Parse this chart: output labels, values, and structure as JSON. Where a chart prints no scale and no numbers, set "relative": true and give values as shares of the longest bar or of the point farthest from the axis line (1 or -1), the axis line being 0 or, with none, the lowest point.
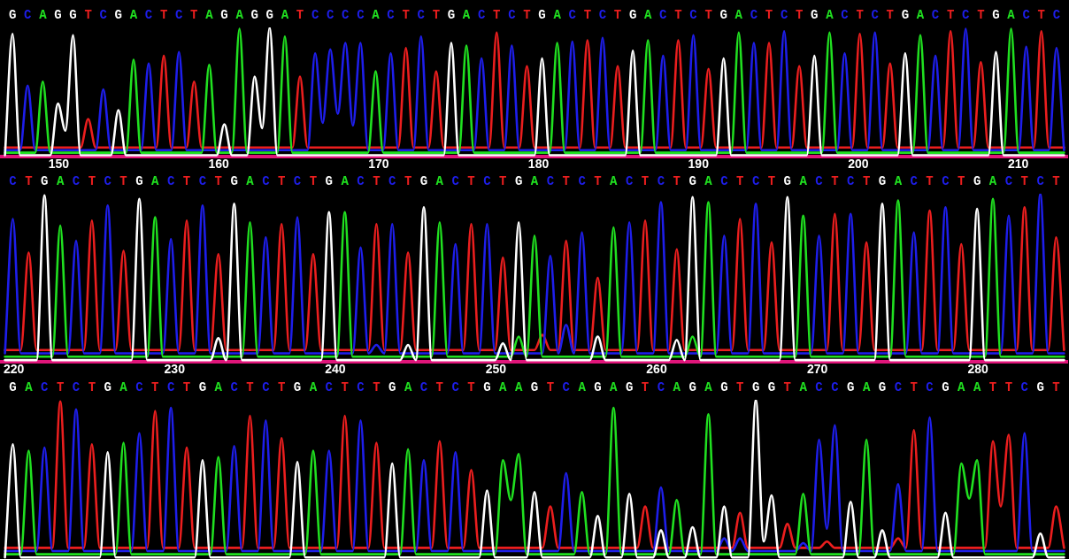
{
  "chart_data": [
    {
      "type": "line",
      "relative": true,
      "categories": [
        null,
        "G",
        null,
        "C",
        null,
        "A",
        null,
        "G",
        null,
        "G",
        null,
        "T",
        null,
        "C",
        null,
        "G",
        null,
        "A",
        null,
        "C",
        null,
        "T",
        null,
        "C",
        null,
        "T",
        null,
        "A",
        null,
        "G",
        null,
        "A",
        null,
        "G",
        null,
        "G",
        null,
        "A",
        null,
        "T",
        null,
        "C",
        null,
        "C",
        null,
        "C",
        null,
        "C",
        null,
        "A",
        null,
        "C",
        null,
        "T",
        null,
        "C",
        null,
        "T",
        null,
        "G",
        null,
        "A",
        null,
        "C",
        null,
        "T",
        null,
        "C",
        null,
        "T",
        null,
        "G",
        null,
        "A",
        null,
        "C",
        null,
        "T",
        null,
        "C",
        null,
        "T",
        null,
        "G",
        null,
        "A",
        null,
        "C",
        null,
        "T",
        null,
        "C",
        null,
        "T",
        null,
        "G",
        null,
        "A",
        null,
        "C",
        null,
        "T",
        null,
        "C",
        null,
        "T",
        null,
        "G",
        null,
        "A",
        null,
        "C",
        null,
        "T",
        null,
        "C",
        null,
        "T",
        null,
        "G",
        null,
        "A",
        null,
        "C",
        null,
        "T",
        null,
        "C",
        null,
        "T",
        null,
        "G",
        null,
        "A",
        null,
        "C",
        null,
        "T",
        null,
        "C",
        null
      ],
      "x2lim": [
        146.4,
        213.1
      ],
      "x2ticks": [
        150,
        160,
        170,
        180,
        190,
        200,
        210
      ],
      "series": [
        {
          "color": "#ffffff",
          "values": [
            0.01,
            0.95,
            0.01,
            0.01,
            0.01,
            0.01,
            0.01,
            0.41,
            0.2,
            0.94,
            0.01,
            0.01,
            0.01,
            0.01,
            0.01,
            0.36,
            0.01,
            0.01,
            0.01,
            0.01,
            0.01,
            0.01,
            0.01,
            0.01,
            0.01,
            0.01,
            0.01,
            0.01,
            0.01,
            0.25,
            0.01,
            0.01,
            0.01,
            0.62,
            0.22,
            1.0,
            0.01,
            0.01,
            0.01,
            0.01,
            0.01,
            0.01,
            0.01,
            0.01,
            0.01,
            0.01,
            0.01,
            0.01,
            0.01,
            0.01,
            0.01,
            0.01,
            0.01,
            0.01,
            0.01,
            0.01,
            0.01,
            0.01,
            0.01,
            0.88,
            0.01,
            0.01,
            0.01,
            0.01,
            0.01,
            0.01,
            0.01,
            0.01,
            0.01,
            0.01,
            0.01,
            0.76,
            0.01,
            0.01,
            0.01,
            0.01,
            0.01,
            0.01,
            0.01,
            0.01,
            0.01,
            0.01,
            0.01,
            0.82,
            0.01,
            0.01,
            0.01,
            0.01,
            0.01,
            0.01,
            0.01,
            0.01,
            0.01,
            0.01,
            0.01,
            0.76,
            0.01,
            0.01,
            0.01,
            0.01,
            0.01,
            0.01,
            0.01,
            0.01,
            0.01,
            0.01,
            0.01,
            0.78,
            0.01,
            0.01,
            0.01,
            0.01,
            0.01,
            0.01,
            0.01,
            0.01,
            0.01,
            0.01,
            0.01,
            0.8,
            0.01,
            0.01,
            0.01,
            0.01,
            0.01,
            0.01,
            0.01,
            0.01,
            0.01,
            0.01,
            0.01,
            0.81,
            0.01,
            0.01,
            0.01,
            0.01,
            0.01,
            0.01,
            0.01,
            0.01,
            0.01
          ]
        },
        {
          "color": "#20e020",
          "values": [
            0.03,
            0.03,
            0.03,
            0.03,
            0.03,
            0.58,
            0.03,
            0.03,
            0.03,
            0.03,
            0.03,
            0.03,
            0.03,
            0.03,
            0.03,
            0.03,
            0.03,
            0.75,
            0.03,
            0.03,
            0.03,
            0.03,
            0.03,
            0.03,
            0.03,
            0.03,
            0.03,
            0.71,
            0.03,
            0.03,
            0.03,
            0.99,
            0.03,
            0.03,
            0.03,
            0.03,
            0.03,
            0.93,
            0.03,
            0.03,
            0.03,
            0.03,
            0.03,
            0.03,
            0.03,
            0.03,
            0.03,
            0.03,
            0.03,
            0.66,
            0.03,
            0.03,
            0.03,
            0.03,
            0.03,
            0.03,
            0.03,
            0.03,
            0.03,
            0.03,
            0.03,
            0.86,
            0.03,
            0.03,
            0.03,
            0.03,
            0.03,
            0.03,
            0.03,
            0.03,
            0.03,
            0.03,
            0.03,
            0.88,
            0.03,
            0.03,
            0.03,
            0.03,
            0.03,
            0.03,
            0.03,
            0.03,
            0.03,
            0.03,
            0.03,
            0.9,
            0.03,
            0.03,
            0.03,
            0.03,
            0.03,
            0.03,
            0.03,
            0.03,
            0.03,
            0.03,
            0.03,
            0.96,
            0.03,
            0.03,
            0.03,
            0.03,
            0.03,
            0.03,
            0.03,
            0.03,
            0.03,
            0.03,
            0.03,
            0.96,
            0.03,
            0.03,
            0.03,
            0.03,
            0.03,
            0.03,
            0.03,
            0.03,
            0.03,
            0.03,
            0.03,
            0.94,
            0.03,
            0.03,
            0.03,
            0.03,
            0.03,
            0.03,
            0.03,
            0.03,
            0.03,
            0.03,
            0.03,
            0.99,
            0.03,
            0.03,
            0.03,
            0.03,
            0.03,
            0.03,
            0.03
          ]
        },
        {
          "color": "#1e1eeb",
          "values": [
            0.05,
            0.05,
            0.05,
            0.55,
            0.05,
            0.05,
            0.05,
            0.05,
            0.05,
            0.05,
            0.05,
            0.05,
            0.05,
            0.52,
            0.05,
            0.05,
            0.05,
            0.05,
            0.05,
            0.72,
            0.05,
            0.05,
            0.05,
            0.81,
            0.05,
            0.05,
            0.05,
            0.05,
            0.05,
            0.05,
            0.05,
            0.05,
            0.05,
            0.05,
            0.05,
            0.05,
            0.05,
            0.05,
            0.05,
            0.05,
            0.05,
            0.8,
            0.26,
            0.83,
            0.33,
            0.88,
            0.24,
            0.88,
            0.05,
            0.05,
            0.05,
            0.8,
            0.05,
            0.05,
            0.05,
            0.93,
            0.05,
            0.05,
            0.05,
            0.05,
            0.05,
            0.05,
            0.05,
            0.76,
            0.05,
            0.05,
            0.05,
            0.86,
            0.05,
            0.05,
            0.05,
            0.05,
            0.05,
            0.05,
            0.05,
            0.89,
            0.05,
            0.05,
            0.05,
            0.92,
            0.05,
            0.05,
            0.05,
            0.05,
            0.05,
            0.05,
            0.05,
            0.78,
            0.05,
            0.05,
            0.05,
            0.94,
            0.05,
            0.05,
            0.05,
            0.05,
            0.05,
            0.05,
            0.05,
            0.88,
            0.05,
            0.05,
            0.05,
            0.97,
            0.05,
            0.05,
            0.05,
            0.05,
            0.05,
            0.05,
            0.05,
            0.8,
            0.05,
            0.05,
            0.05,
            0.96,
            0.05,
            0.05,
            0.05,
            0.05,
            0.05,
            0.05,
            0.05,
            0.78,
            0.05,
            0.05,
            0.05,
            0.99,
            0.05,
            0.05,
            0.05,
            0.05,
            0.05,
            0.05,
            0.05,
            0.85,
            0.05,
            0.05,
            0.05,
            0.84,
            0.05
          ]
        },
        {
          "color": "#eb1e1e",
          "values": [
            0.07,
            0.07,
            0.07,
            0.07,
            0.07,
            0.07,
            0.07,
            0.07,
            0.07,
            0.07,
            0.07,
            0.29,
            0.07,
            0.07,
            0.07,
            0.07,
            0.07,
            0.07,
            0.07,
            0.07,
            0.07,
            0.78,
            0.07,
            0.07,
            0.07,
            0.58,
            0.07,
            0.07,
            0.07,
            0.07,
            0.07,
            0.07,
            0.07,
            0.07,
            0.07,
            0.07,
            0.07,
            0.07,
            0.07,
            0.62,
            0.07,
            0.07,
            0.07,
            0.07,
            0.07,
            0.07,
            0.07,
            0.07,
            0.07,
            0.07,
            0.07,
            0.07,
            0.07,
            0.84,
            0.07,
            0.07,
            0.07,
            0.66,
            0.07,
            0.07,
            0.07,
            0.07,
            0.07,
            0.07,
            0.07,
            0.96,
            0.07,
            0.07,
            0.07,
            0.7,
            0.07,
            0.07,
            0.07,
            0.07,
            0.07,
            0.07,
            0.07,
            0.9,
            0.07,
            0.07,
            0.07,
            0.7,
            0.07,
            0.07,
            0.07,
            0.07,
            0.07,
            0.07,
            0.07,
            0.9,
            0.07,
            0.07,
            0.07,
            0.68,
            0.07,
            0.07,
            0.07,
            0.07,
            0.07,
            0.07,
            0.07,
            0.88,
            0.07,
            0.07,
            0.07,
            0.7,
            0.07,
            0.07,
            0.07,
            0.07,
            0.07,
            0.07,
            0.07,
            0.95,
            0.07,
            0.07,
            0.07,
            0.72,
            0.07,
            0.07,
            0.07,
            0.07,
            0.07,
            0.07,
            0.07,
            0.97,
            0.07,
            0.07,
            0.07,
            0.73,
            0.07,
            0.07,
            0.07,
            0.07,
            0.07,
            0.07,
            0.07,
            0.97,
            0.07,
            0.07,
            0.07
          ]
        }
      ]
    },
    {
      "type": "line",
      "relative": true,
      "categories": [
        null,
        "C",
        null,
        "T",
        null,
        "G",
        null,
        "A",
        null,
        "C",
        null,
        "T",
        null,
        "C",
        null,
        "T",
        null,
        "G",
        null,
        "A",
        null,
        "C",
        null,
        "T",
        null,
        "C",
        null,
        "T",
        null,
        "G",
        null,
        "A",
        null,
        "C",
        null,
        "T",
        null,
        "C",
        null,
        "T",
        null,
        "G",
        null,
        "A",
        null,
        "C",
        null,
        "T",
        null,
        "C",
        null,
        "T",
        null,
        "G",
        null,
        "A",
        null,
        "C",
        null,
        "T",
        null,
        "C",
        null,
        "T",
        null,
        "G",
        null,
        "A",
        null,
        "C",
        null,
        "T",
        null,
        "C",
        null,
        "T",
        null,
        "A",
        null,
        "C",
        null,
        "T",
        null,
        "C",
        null,
        "T",
        null,
        "G",
        null,
        "A",
        null,
        "C",
        null,
        "T",
        null,
        "C",
        null,
        "T",
        null,
        "G",
        null,
        "A",
        null,
        "C",
        null,
        "T",
        null,
        "C",
        null,
        "T",
        null,
        "G",
        null,
        "A",
        null,
        "C",
        null,
        "T",
        null,
        "C",
        null,
        "T",
        null,
        "G",
        null,
        "A",
        null,
        "C",
        null,
        "T",
        null,
        "C",
        null,
        "T",
        null
      ],
      "x2lim": [
        219.2,
        285.6
      ],
      "x2ticks": [
        220,
        230,
        240,
        250,
        260,
        270,
        280
      ],
      "series": [
        {
          "color": "#ffffff",
          "values": [
            0.01,
            0.01,
            0.01,
            0.01,
            0.01,
            0.99,
            0.01,
            0.01,
            0.01,
            0.01,
            0.01,
            0.01,
            0.01,
            0.01,
            0.01,
            0.01,
            0.01,
            0.97,
            0.01,
            0.01,
            0.01,
            0.01,
            0.01,
            0.01,
            0.01,
            0.01,
            0.01,
            0.14,
            0.01,
            0.94,
            0.01,
            0.01,
            0.01,
            0.01,
            0.01,
            0.01,
            0.01,
            0.01,
            0.01,
            0.01,
            0.01,
            0.89,
            0.01,
            0.01,
            0.01,
            0.01,
            0.01,
            0.01,
            0.01,
            0.01,
            0.01,
            0.1,
            0.01,
            0.92,
            0.01,
            0.01,
            0.01,
            0.01,
            0.01,
            0.01,
            0.01,
            0.01,
            0.01,
            0.11,
            0.01,
            0.83,
            0.01,
            0.01,
            0.01,
            0.01,
            0.01,
            0.01,
            0.01,
            0.01,
            0.01,
            0.15,
            0.01,
            0.01,
            0.01,
            0.01,
            0.01,
            0.01,
            0.01,
            0.01,
            0.01,
            0.13,
            0.01,
            0.98,
            0.01,
            0.01,
            0.01,
            0.01,
            0.01,
            0.01,
            0.01,
            0.01,
            0.01,
            0.01,
            0.01,
            0.98,
            0.01,
            0.01,
            0.01,
            0.01,
            0.01,
            0.01,
            0.01,
            0.01,
            0.01,
            0.01,
            0.01,
            0.94,
            0.01,
            0.01,
            0.01,
            0.01,
            0.01,
            0.01,
            0.01,
            0.01,
            0.01,
            0.01,
            0.01,
            0.91,
            0.01,
            0.01,
            0.01,
            0.01,
            0.01,
            0.01,
            0.01,
            0.01,
            0.01,
            0.01,
            0.01
          ]
        },
        {
          "color": "#20e020",
          "values": [
            0.03,
            0.03,
            0.03,
            0.03,
            0.03,
            0.03,
            0.03,
            0.81,
            0.03,
            0.03,
            0.03,
            0.03,
            0.03,
            0.03,
            0.03,
            0.03,
            0.03,
            0.03,
            0.03,
            0.86,
            0.03,
            0.03,
            0.03,
            0.03,
            0.03,
            0.03,
            0.03,
            0.03,
            0.03,
            0.03,
            0.03,
            0.83,
            0.03,
            0.03,
            0.03,
            0.03,
            0.03,
            0.03,
            0.03,
            0.03,
            0.03,
            0.03,
            0.03,
            0.89,
            0.03,
            0.03,
            0.03,
            0.03,
            0.03,
            0.03,
            0.03,
            0.03,
            0.03,
            0.03,
            0.03,
            0.83,
            0.03,
            0.03,
            0.03,
            0.03,
            0.03,
            0.03,
            0.03,
            0.03,
            0.03,
            0.15,
            0.03,
            0.75,
            0.03,
            0.03,
            0.03,
            0.03,
            0.03,
            0.03,
            0.03,
            0.03,
            0.03,
            0.8,
            0.03,
            0.03,
            0.03,
            0.03,
            0.03,
            0.03,
            0.03,
            0.03,
            0.03,
            0.15,
            0.03,
            0.95,
            0.03,
            0.03,
            0.03,
            0.03,
            0.03,
            0.03,
            0.03,
            0.03,
            0.03,
            0.03,
            0.03,
            0.87,
            0.03,
            0.03,
            0.03,
            0.03,
            0.03,
            0.03,
            0.03,
            0.03,
            0.03,
            0.03,
            0.03,
            0.96,
            0.03,
            0.03,
            0.03,
            0.03,
            0.03,
            0.03,
            0.03,
            0.03,
            0.03,
            0.03,
            0.03,
            0.97,
            0.03,
            0.03,
            0.03,
            0.03,
            0.03,
            0.03,
            0.03,
            0.03,
            0.03
          ]
        },
        {
          "color": "#1e1eeb",
          "values": [
            0.05,
            0.85,
            0.05,
            0.05,
            0.05,
            0.05,
            0.05,
            0.05,
            0.05,
            0.72,
            0.05,
            0.05,
            0.05,
            0.93,
            0.05,
            0.05,
            0.05,
            0.05,
            0.05,
            0.05,
            0.05,
            0.73,
            0.05,
            0.05,
            0.05,
            0.93,
            0.05,
            0.05,
            0.05,
            0.05,
            0.05,
            0.05,
            0.05,
            0.74,
            0.05,
            0.05,
            0.05,
            0.86,
            0.05,
            0.05,
            0.05,
            0.05,
            0.05,
            0.05,
            0.05,
            0.68,
            0.05,
            0.1,
            0.05,
            0.82,
            0.05,
            0.05,
            0.05,
            0.05,
            0.05,
            0.05,
            0.05,
            0.7,
            0.05,
            0.05,
            0.05,
            0.82,
            0.05,
            0.05,
            0.05,
            0.05,
            0.05,
            0.05,
            0.05,
            0.63,
            0.05,
            0.22,
            0.05,
            0.77,
            0.05,
            0.05,
            0.05,
            0.05,
            0.05,
            0.83,
            0.05,
            0.05,
            0.05,
            0.95,
            0.05,
            0.05,
            0.05,
            0.05,
            0.05,
            0.05,
            0.05,
            0.75,
            0.05,
            0.05,
            0.05,
            0.94,
            0.05,
            0.05,
            0.05,
            0.05,
            0.05,
            0.05,
            0.05,
            0.75,
            0.05,
            0.05,
            0.05,
            0.88,
            0.05,
            0.05,
            0.05,
            0.05,
            0.05,
            0.05,
            0.05,
            0.77,
            0.05,
            0.05,
            0.05,
            0.92,
            0.05,
            0.05,
            0.05,
            0.05,
            0.05,
            0.05,
            0.05,
            0.87,
            0.05,
            0.05,
            0.05,
            1.0,
            0.05,
            0.05,
            0.05
          ]
        },
        {
          "color": "#eb1e1e",
          "values": [
            0.07,
            0.07,
            0.07,
            0.65,
            0.07,
            0.07,
            0.07,
            0.07,
            0.07,
            0.07,
            0.07,
            0.84,
            0.07,
            0.07,
            0.07,
            0.66,
            0.07,
            0.07,
            0.07,
            0.07,
            0.07,
            0.07,
            0.07,
            0.84,
            0.07,
            0.07,
            0.07,
            0.64,
            0.07,
            0.07,
            0.07,
            0.07,
            0.07,
            0.07,
            0.07,
            0.82,
            0.07,
            0.07,
            0.07,
            0.64,
            0.07,
            0.07,
            0.07,
            0.07,
            0.07,
            0.07,
            0.07,
            0.82,
            0.07,
            0.07,
            0.07,
            0.65,
            0.07,
            0.07,
            0.07,
            0.07,
            0.07,
            0.07,
            0.07,
            0.82,
            0.07,
            0.07,
            0.07,
            0.62,
            0.07,
            0.07,
            0.07,
            0.07,
            0.16,
            0.07,
            0.07,
            0.72,
            0.07,
            0.07,
            0.07,
            0.5,
            0.07,
            0.07,
            0.07,
            0.07,
            0.07,
            0.84,
            0.07,
            0.07,
            0.07,
            0.67,
            0.07,
            0.07,
            0.07,
            0.07,
            0.07,
            0.07,
            0.07,
            0.85,
            0.07,
            0.07,
            0.07,
            0.71,
            0.07,
            0.07,
            0.07,
            0.07,
            0.07,
            0.07,
            0.07,
            0.88,
            0.07,
            0.07,
            0.07,
            0.71,
            0.07,
            0.07,
            0.07,
            0.07,
            0.07,
            0.07,
            0.07,
            0.9,
            0.07,
            0.07,
            0.07,
            0.7,
            0.07,
            0.07,
            0.07,
            0.07,
            0.07,
            0.07,
            0.07,
            0.92,
            0.07,
            0.07,
            0.07,
            0.74,
            0.07
          ]
        }
      ]
    },
    {
      "type": "line",
      "relative": true,
      "categories": [
        null,
        "G",
        null,
        "A",
        null,
        "C",
        null,
        "T",
        null,
        "C",
        null,
        "T",
        null,
        "G",
        null,
        "A",
        null,
        "C",
        null,
        "T",
        null,
        "C",
        null,
        "T",
        null,
        "G",
        null,
        "A",
        null,
        "C",
        null,
        "T",
        null,
        "C",
        null,
        "T",
        null,
        "G",
        null,
        "A",
        null,
        "C",
        null,
        "T",
        null,
        "C",
        null,
        "T",
        null,
        "G",
        null,
        "A",
        null,
        "C",
        null,
        "T",
        null,
        "C",
        null,
        "T",
        null,
        "G",
        null,
        "A",
        null,
        "A",
        null,
        "G",
        null,
        "T",
        null,
        "C",
        null,
        "A",
        null,
        "G",
        null,
        "A",
        null,
        "G",
        null,
        "T",
        null,
        "C",
        null,
        "A",
        null,
        "G",
        null,
        "A",
        null,
        "G",
        null,
        "T",
        null,
        "G",
        null,
        "G",
        null,
        "T",
        null,
        "A",
        null,
        "C",
        null,
        "C",
        null,
        "G",
        null,
        "A",
        null,
        "G",
        null,
        "C",
        null,
        "T",
        null,
        "C",
        null,
        "G",
        null,
        "A",
        null,
        "A",
        null,
        "T",
        null,
        "T",
        null,
        "C",
        null,
        "G",
        null,
        "T",
        null
      ],
      "series": [
        {
          "color": "#ffffff",
          "values": [
            0.01,
            0.72,
            0.01,
            0.01,
            0.01,
            0.01,
            0.01,
            0.01,
            0.01,
            0.01,
            0.01,
            0.01,
            0.01,
            0.67,
            0.01,
            0.01,
            0.01,
            0.01,
            0.01,
            0.01,
            0.01,
            0.01,
            0.01,
            0.01,
            0.01,
            0.62,
            0.01,
            0.01,
            0.01,
            0.01,
            0.01,
            0.01,
            0.01,
            0.01,
            0.01,
            0.01,
            0.01,
            0.61,
            0.01,
            0.01,
            0.01,
            0.01,
            0.01,
            0.01,
            0.01,
            0.01,
            0.01,
            0.01,
            0.01,
            0.6,
            0.01,
            0.01,
            0.01,
            0.01,
            0.01,
            0.01,
            0.01,
            0.01,
            0.01,
            0.01,
            0.01,
            0.43,
            0.01,
            0.01,
            0.01,
            0.01,
            0.01,
            0.42,
            0.01,
            0.01,
            0.01,
            0.01,
            0.01,
            0.01,
            0.01,
            0.27,
            0.01,
            0.01,
            0.01,
            0.41,
            0.01,
            0.01,
            0.01,
            0.18,
            0.01,
            0.01,
            0.01,
            0.2,
            0.01,
            0.01,
            0.01,
            0.33,
            0.01,
            0.01,
            0.01,
            1.0,
            0.11,
            0.4,
            0.01,
            0.01,
            0.01,
            0.01,
            0.01,
            0.01,
            0.01,
            0.01,
            0.01,
            0.36,
            0.01,
            0.01,
            0.01,
            0.18,
            0.01,
            0.01,
            0.01,
            0.01,
            0.01,
            0.01,
            0.01,
            0.29,
            0.01,
            0.01,
            0.01,
            0.01,
            0.01,
            0.01,
            0.01,
            0.01,
            0.01,
            0.01,
            0.01,
            0.16,
            0.01,
            0.01,
            0.01
          ]
        },
        {
          "color": "#20e020",
          "values": [
            0.03,
            0.03,
            0.03,
            0.68,
            0.03,
            0.03,
            0.03,
            0.03,
            0.03,
            0.03,
            0.03,
            0.03,
            0.03,
            0.03,
            0.03,
            0.73,
            0.03,
            0.03,
            0.03,
            0.03,
            0.03,
            0.03,
            0.03,
            0.03,
            0.03,
            0.03,
            0.03,
            0.64,
            0.03,
            0.03,
            0.03,
            0.03,
            0.03,
            0.03,
            0.03,
            0.03,
            0.03,
            0.03,
            0.03,
            0.68,
            0.03,
            0.03,
            0.03,
            0.03,
            0.03,
            0.03,
            0.03,
            0.03,
            0.03,
            0.03,
            0.03,
            0.69,
            0.03,
            0.03,
            0.03,
            0.03,
            0.03,
            0.03,
            0.03,
            0.03,
            0.03,
            0.03,
            0.03,
            0.62,
            0.37,
            0.66,
            0.03,
            0.03,
            0.03,
            0.03,
            0.03,
            0.03,
            0.03,
            0.42,
            0.03,
            0.03,
            0.03,
            0.95,
            0.03,
            0.03,
            0.03,
            0.03,
            0.03,
            0.03,
            0.03,
            0.37,
            0.03,
            0.03,
            0.03,
            0.91,
            0.03,
            0.03,
            0.03,
            0.03,
            0.03,
            0.03,
            0.03,
            0.03,
            0.03,
            0.03,
            0.03,
            0.41,
            0.03,
            0.03,
            0.03,
            0.03,
            0.03,
            0.03,
            0.03,
            0.75,
            0.03,
            0.03,
            0.03,
            0.03,
            0.03,
            0.03,
            0.03,
            0.03,
            0.03,
            0.03,
            0.03,
            0.6,
            0.38,
            0.62,
            0.03,
            0.03,
            0.03,
            0.03,
            0.03,
            0.03,
            0.03,
            0.03,
            0.03,
            0.03,
            0.03
          ]
        },
        {
          "color": "#1e1eeb",
          "values": [
            0.05,
            0.05,
            0.05,
            0.05,
            0.05,
            0.7,
            0.05,
            0.05,
            0.05,
            0.94,
            0.05,
            0.05,
            0.05,
            0.05,
            0.05,
            0.05,
            0.05,
            0.79,
            0.05,
            0.05,
            0.05,
            0.95,
            0.05,
            0.05,
            0.05,
            0.05,
            0.05,
            0.05,
            0.05,
            0.71,
            0.05,
            0.05,
            0.05,
            0.87,
            0.05,
            0.05,
            0.05,
            0.05,
            0.05,
            0.05,
            0.05,
            0.68,
            0.05,
            0.05,
            0.05,
            0.87,
            0.05,
            0.05,
            0.05,
            0.05,
            0.05,
            0.05,
            0.05,
            0.62,
            0.05,
            0.05,
            0.05,
            0.67,
            0.05,
            0.05,
            0.05,
            0.05,
            0.05,
            0.05,
            0.05,
            0.05,
            0.05,
            0.05,
            0.05,
            0.05,
            0.05,
            0.54,
            0.05,
            0.05,
            0.05,
            0.05,
            0.05,
            0.05,
            0.05,
            0.05,
            0.05,
            0.05,
            0.05,
            0.45,
            0.05,
            0.05,
            0.05,
            0.05,
            0.05,
            0.05,
            0.05,
            0.13,
            0.05,
            0.13,
            0.05,
            0.05,
            0.05,
            0.05,
            0.05,
            0.05,
            0.05,
            0.1,
            0.05,
            0.75,
            0.19,
            0.84,
            0.05,
            0.05,
            0.05,
            0.05,
            0.05,
            0.05,
            0.05,
            0.47,
            0.05,
            0.05,
            0.05,
            0.89,
            0.05,
            0.05,
            0.05,
            0.05,
            0.05,
            0.05,
            0.05,
            0.05,
            0.05,
            0.05,
            0.05,
            0.79,
            0.05,
            0.05,
            0.05,
            0.05,
            0.05
          ]
        },
        {
          "color": "#eb1e1e",
          "values": [
            0.07,
            0.07,
            0.07,
            0.07,
            0.07,
            0.07,
            0.07,
            0.99,
            0.07,
            0.07,
            0.07,
            0.72,
            0.07,
            0.07,
            0.07,
            0.07,
            0.07,
            0.07,
            0.07,
            0.93,
            0.07,
            0.07,
            0.07,
            0.7,
            0.07,
            0.07,
            0.07,
            0.07,
            0.07,
            0.07,
            0.07,
            0.9,
            0.07,
            0.07,
            0.07,
            0.76,
            0.07,
            0.07,
            0.07,
            0.07,
            0.07,
            0.07,
            0.07,
            0.9,
            0.07,
            0.07,
            0.07,
            0.73,
            0.07,
            0.07,
            0.07,
            0.07,
            0.07,
            0.07,
            0.07,
            0.74,
            0.07,
            0.07,
            0.07,
            0.56,
            0.07,
            0.07,
            0.07,
            0.07,
            0.07,
            0.07,
            0.07,
            0.07,
            0.07,
            0.33,
            0.07,
            0.07,
            0.07,
            0.07,
            0.07,
            0.07,
            0.07,
            0.07,
            0.07,
            0.07,
            0.07,
            0.33,
            0.07,
            0.07,
            0.07,
            0.07,
            0.07,
            0.07,
            0.07,
            0.07,
            0.07,
            0.07,
            0.07,
            0.29,
            0.07,
            0.07,
            0.07,
            0.07,
            0.07,
            0.22,
            0.07,
            0.07,
            0.07,
            0.07,
            0.11,
            0.07,
            0.07,
            0.07,
            0.07,
            0.07,
            0.07,
            0.07,
            0.07,
            0.13,
            0.07,
            0.81,
            0.07,
            0.07,
            0.07,
            0.07,
            0.07,
            0.07,
            0.07,
            0.07,
            0.07,
            0.74,
            0.33,
            0.78,
            0.07,
            0.07,
            0.07,
            0.07,
            0.07,
            0.33,
            0.07
          ]
        }
      ]
    }
  ]
}
